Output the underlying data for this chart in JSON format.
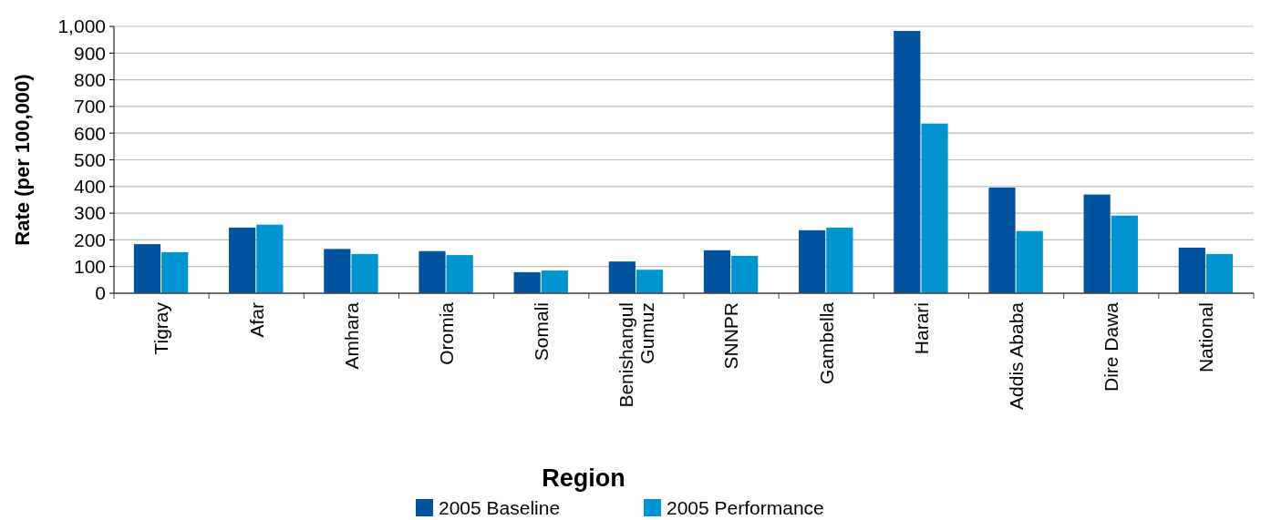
{
  "chart_data": {
    "type": "bar",
    "xlabel": "Region",
    "ylabel": "Rate (per 100,000)",
    "categories": [
      "Tigray",
      "Afar",
      "Amhara",
      "Oromia",
      "Somali",
      "Benishangul Gumuz",
      "SNNPR",
      "Gambella",
      "Harari",
      "Addis Ababa",
      "Dire Dawa",
      "National"
    ],
    "series": [
      {
        "name": "2005 Baseline",
        "color": "#00539f",
        "values": [
          184,
          246,
          166,
          158,
          79,
          119,
          161,
          236,
          983,
          396,
          370,
          171
        ]
      },
      {
        "name": "2005 Performance",
        "color": "#0095d0",
        "values": [
          154,
          257,
          147,
          143,
          85,
          88,
          140,
          246,
          636,
          233,
          291,
          147
        ]
      }
    ],
    "ylim": [
      0,
      1000
    ],
    "yticks": [
      0,
      100,
      200,
      300,
      400,
      500,
      600,
      700,
      800,
      900,
      {
        "value": 1000,
        "label": "1,000"
      }
    ],
    "grid": "y",
    "legend": "bottom"
  }
}
